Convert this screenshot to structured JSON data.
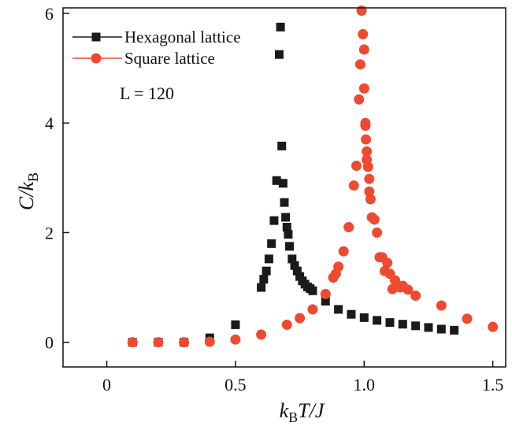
{
  "chart_data": {
    "type": "scatter",
    "x_label_main": "k",
    "x_label_sub": "B",
    "x_label_rest": "T/J",
    "y_label_main": "C/k",
    "y_label_sub": "B",
    "xlim": [
      -0.17,
      1.55
    ],
    "ylim": [
      -0.45,
      6.1
    ],
    "x_ticks": [
      0,
      0.5,
      1.0,
      1.5
    ],
    "x_tick_labels": [
      "0",
      "0.5",
      "1.0",
      "1.5"
    ],
    "y_ticks": [
      0,
      2,
      4,
      6
    ],
    "y_tick_labels": [
      "0",
      "2",
      "4",
      "6"
    ],
    "annotation": "L = 120",
    "grid": false,
    "legend_position": "top-left",
    "series": [
      {
        "name": "Hexagonal lattice",
        "marker": "square",
        "color": "#1a1a1a",
        "points": [
          [
            0.1,
            0.0
          ],
          [
            0.2,
            0.0
          ],
          [
            0.3,
            0.0
          ],
          [
            0.4,
            0.08
          ],
          [
            0.5,
            0.32
          ],
          [
            0.6,
            1.0
          ],
          [
            0.61,
            1.15
          ],
          [
            0.62,
            1.3
          ],
          [
            0.63,
            1.52
          ],
          [
            0.64,
            1.8
          ],
          [
            0.65,
            2.22
          ],
          [
            0.66,
            2.95
          ],
          [
            0.67,
            5.25
          ],
          [
            0.675,
            5.75
          ],
          [
            0.68,
            3.58
          ],
          [
            0.685,
            2.9
          ],
          [
            0.69,
            2.55
          ],
          [
            0.695,
            2.28
          ],
          [
            0.7,
            2.1
          ],
          [
            0.705,
            1.97
          ],
          [
            0.71,
            1.75
          ],
          [
            0.72,
            1.52
          ],
          [
            0.73,
            1.4
          ],
          [
            0.74,
            1.3
          ],
          [
            0.75,
            1.2
          ],
          [
            0.76,
            1.12
          ],
          [
            0.77,
            1.06
          ],
          [
            0.78,
            1.01
          ],
          [
            0.79,
            0.98
          ],
          [
            0.8,
            0.94
          ],
          [
            0.85,
            0.75
          ],
          [
            0.9,
            0.6
          ],
          [
            0.95,
            0.51
          ],
          [
            1.0,
            0.45
          ],
          [
            1.05,
            0.4
          ],
          [
            1.1,
            0.36
          ],
          [
            1.15,
            0.33
          ],
          [
            1.2,
            0.3
          ],
          [
            1.25,
            0.27
          ],
          [
            1.3,
            0.24
          ],
          [
            1.35,
            0.22
          ]
        ]
      },
      {
        "name": "Square lattice",
        "marker": "circle",
        "color": "#ee4a32",
        "points": [
          [
            0.1,
            0.0
          ],
          [
            0.2,
            0.0
          ],
          [
            0.3,
            0.0
          ],
          [
            0.4,
            0.01
          ],
          [
            0.5,
            0.05
          ],
          [
            0.6,
            0.14
          ],
          [
            0.7,
            0.32
          ],
          [
            0.75,
            0.44
          ],
          [
            0.8,
            0.6
          ],
          [
            0.85,
            0.88
          ],
          [
            0.88,
            1.18
          ],
          [
            0.89,
            1.25
          ],
          [
            0.9,
            1.38
          ],
          [
            0.92,
            1.66
          ],
          [
            0.94,
            2.1
          ],
          [
            0.96,
            2.86
          ],
          [
            0.97,
            3.22
          ],
          [
            0.98,
            4.43
          ],
          [
            0.985,
            5.07
          ],
          [
            0.99,
            6.05
          ],
          [
            0.995,
            5.62
          ],
          [
            1.0,
            5.34
          ],
          [
            1.0,
            4.63
          ],
          [
            1.005,
            4.0
          ],
          [
            1.005,
            3.95
          ],
          [
            1.007,
            3.7
          ],
          [
            1.01,
            3.48
          ],
          [
            1.01,
            3.33
          ],
          [
            1.015,
            3.2
          ],
          [
            1.02,
            2.98
          ],
          [
            1.02,
            2.75
          ],
          [
            1.025,
            2.61
          ],
          [
            1.03,
            2.28
          ],
          [
            1.04,
            2.24
          ],
          [
            1.05,
            2.0
          ],
          [
            1.06,
            1.55
          ],
          [
            1.07,
            1.55
          ],
          [
            1.08,
            1.3
          ],
          [
            1.09,
            1.45
          ],
          [
            1.1,
            1.25
          ],
          [
            1.11,
            0.97
          ],
          [
            1.12,
            1.13
          ],
          [
            1.14,
            1.0
          ],
          [
            1.15,
            1.03
          ],
          [
            1.17,
            0.96
          ],
          [
            1.2,
            0.85
          ],
          [
            1.3,
            0.67
          ],
          [
            1.4,
            0.43
          ],
          [
            1.5,
            0.28
          ]
        ]
      }
    ]
  }
}
